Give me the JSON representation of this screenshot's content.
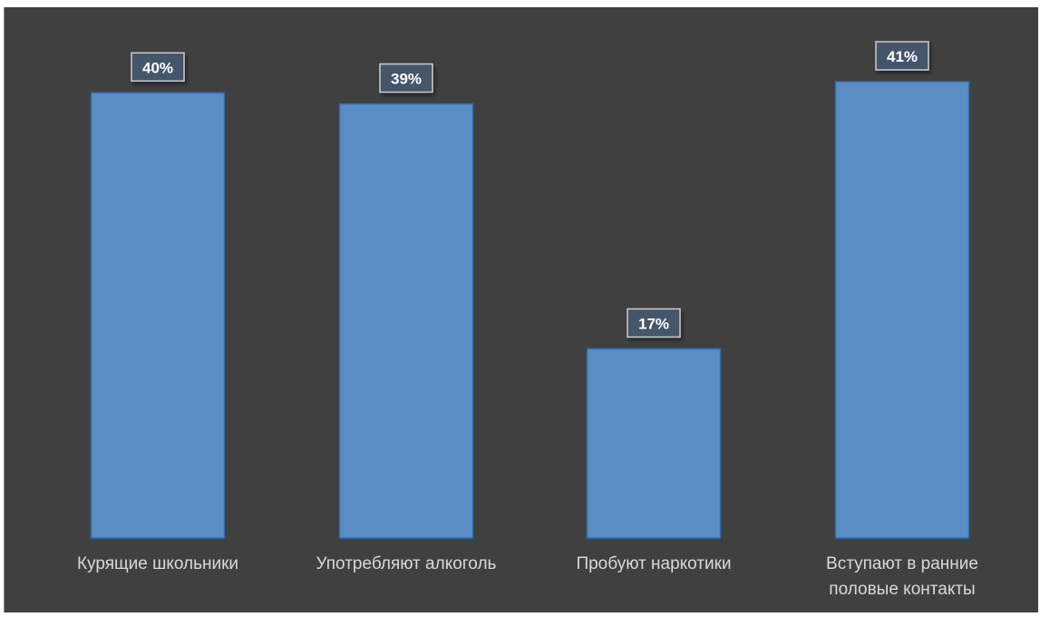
{
  "chart_data": {
    "type": "bar",
    "categories": [
      [
        "Курящие школьники"
      ],
      [
        "Употребляют алкоголь"
      ],
      [
        "Пробуют наркотики"
      ],
      [
        "Вступают в ранние",
        "половые контакты"
      ]
    ],
    "values": [
      40,
      39,
      17,
      41
    ],
    "value_labels": [
      "40%",
      "39%",
      "17%",
      "41%"
    ],
    "unit": "%",
    "title": "",
    "xlabel": "",
    "ylabel": "",
    "ylim": [
      0,
      41
    ],
    "grid": false,
    "legend": "none"
  },
  "colors": {
    "background": "#404040",
    "bar_fill": "#5a8dc4",
    "bar_stroke": "#2e6db4",
    "label_box_fill": "#45546a",
    "label_box_stroke": "#c8ccd2",
    "label_text": "#ffffff",
    "category_text": "#d9d9d9"
  }
}
